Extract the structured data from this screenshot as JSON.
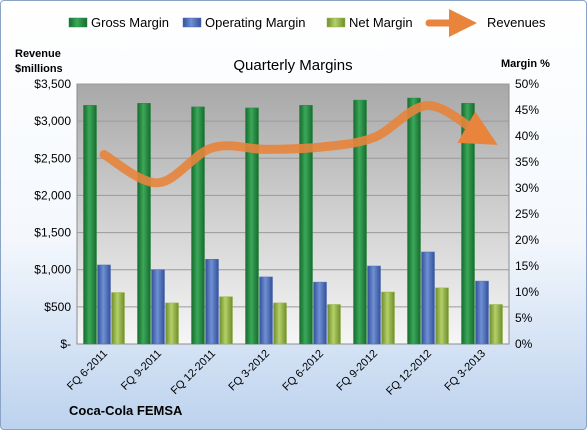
{
  "chart_data": {
    "type": "bar",
    "title": "Quarterly Margins",
    "source_label": "Coca-Cola FEMSA",
    "left_axis": {
      "label_lines": [
        "Revenue",
        "$millions"
      ],
      "ylim": [
        0,
        3500
      ],
      "ticks": [
        0,
        500,
        1000,
        1500,
        2000,
        2500,
        3000,
        3500
      ],
      "tick_labels": [
        "$-",
        "$500",
        "$1,000",
        "$1,500",
        "$2,000",
        "$2,500",
        "$3,000",
        "$3,500"
      ]
    },
    "right_axis": {
      "label": "Margin %",
      "ylim": [
        0,
        50
      ],
      "ticks": [
        0,
        5,
        10,
        15,
        20,
        25,
        30,
        35,
        40,
        45,
        50
      ],
      "tick_labels": [
        "0%",
        "5%",
        "10%",
        "15%",
        "20%",
        "25%",
        "30%",
        "35%",
        "40%",
        "45%",
        "50%"
      ]
    },
    "categories": [
      "FQ 6-2011",
      "FQ 9-2011",
      "FQ 12-2011",
      "FQ 3-2012",
      "FQ 6-2012",
      "FQ 9-2012",
      "FQ 12-2012",
      "FQ 3-2013"
    ],
    "series": [
      {
        "name": "Gross Margin",
        "axis": "right",
        "type": "bar",
        "color": "#2e8b46",
        "values": [
          45.9,
          46.3,
          45.6,
          45.4,
          45.9,
          46.9,
          47.3,
          46.3
        ]
      },
      {
        "name": "Operating Margin",
        "axis": "right",
        "type": "bar",
        "color": "#4f6fb8",
        "values": [
          15.2,
          14.3,
          16.3,
          12.9,
          11.9,
          15.0,
          17.7,
          12.1
        ]
      },
      {
        "name": "Net Margin",
        "axis": "right",
        "type": "bar",
        "color": "#98b84c",
        "values": [
          9.9,
          7.9,
          9.1,
          7.9,
          7.6,
          10.0,
          10.8,
          7.6
        ]
      },
      {
        "name": "Revenues",
        "axis": "left",
        "type": "line",
        "color": "#e8843c",
        "values": [
          2550,
          2170,
          2640,
          2620,
          2650,
          2780,
          3210,
          2800
        ]
      }
    ],
    "legend_position": "top",
    "grid": true
  }
}
